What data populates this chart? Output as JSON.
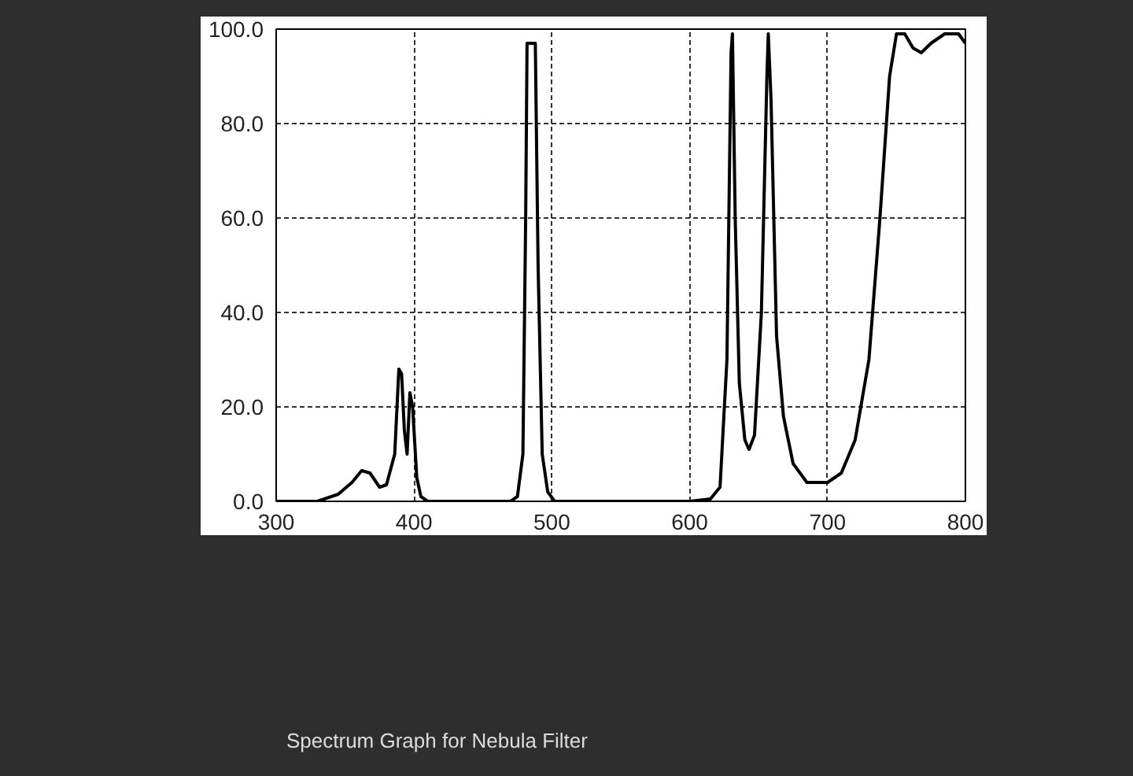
{
  "chart_data": {
    "type": "line",
    "xlim": [
      300,
      800
    ],
    "ylim": [
      0,
      100
    ],
    "xticks": [
      300,
      400,
      500,
      600,
      700,
      800
    ],
    "yticks": [
      {
        "value": 0,
        "label": "0.0"
      },
      {
        "value": 20,
        "label": "20.0"
      },
      {
        "value": 40,
        "label": "40.0"
      },
      {
        "value": 60,
        "label": "60.0"
      },
      {
        "value": 80,
        "label": "80.0"
      },
      {
        "value": 100,
        "label": "100.0"
      }
    ],
    "grid": true,
    "line_style": "solid",
    "marker": "none",
    "annotations": [
      "Spectrum Graph for Nebula Filter"
    ],
    "series": [
      {
        "color": "#000000",
        "x": [
          300,
          330,
          345,
          355,
          362,
          368,
          375,
          380,
          386,
          389,
          391,
          393,
          395,
          397,
          399,
          402,
          405,
          410,
          470,
          475,
          479,
          481,
          482,
          488,
          490,
          493,
          497,
          502,
          600,
          615,
          622,
          627,
          630,
          631,
          633,
          636,
          640,
          643,
          647,
          652,
          656,
          657,
          659,
          663,
          668,
          675,
          685,
          700,
          710,
          720,
          730,
          738,
          745,
          750,
          756,
          762,
          768,
          775,
          785,
          795,
          800
        ],
        "values": [
          0,
          0,
          1.5,
          4,
          6.5,
          6,
          3,
          3.5,
          10,
          28,
          27,
          15,
          10,
          23,
          20,
          5,
          1,
          0,
          0,
          1,
          10,
          60,
          97,
          97,
          50,
          10,
          2,
          0,
          0,
          0.5,
          3,
          30,
          95,
          99,
          60,
          25,
          13,
          11,
          14,
          40,
          90,
          99,
          85,
          35,
          18,
          8,
          4,
          4,
          6,
          13,
          30,
          60,
          90,
          99,
          99,
          96,
          95,
          97,
          99,
          99,
          97
        ]
      }
    ]
  }
}
